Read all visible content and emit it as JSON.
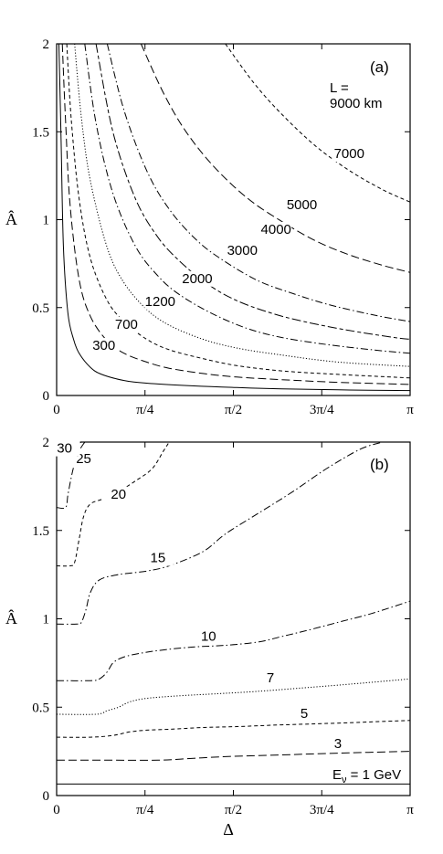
{
  "chart_data": [
    {
      "type": "line",
      "panel_label": "(a)",
      "ylabel": "Â",
      "xlabel": "",
      "xlim": [
        0,
        3.1416
      ],
      "ylim": [
        0,
        2
      ],
      "xticks": [
        {
          "v": 0,
          "t": "0"
        },
        {
          "v": 0.7854,
          "t": "π/4"
        },
        {
          "v": 1.5708,
          "t": "π/2"
        },
        {
          "v": 2.3562,
          "t": "3π/4"
        },
        {
          "v": 3.1416,
          "t": "π"
        }
      ],
      "yticks": [
        {
          "v": 0,
          "t": "0"
        },
        {
          "v": 0.5,
          "t": "0.5"
        },
        {
          "v": 1,
          "t": "1"
        },
        {
          "v": 1.5,
          "t": "1.5"
        },
        {
          "v": 2,
          "t": "2"
        }
      ],
      "series": [
        {
          "name": "300",
          "dash": "solid",
          "label_at": [
            0.42,
            0.26
          ],
          "x": [
            0.02,
            0.04,
            0.06,
            0.1,
            0.15,
            0.2,
            0.3,
            0.4,
            0.6,
            0.8,
            1.2,
            1.6,
            2.0,
            2.5,
            3.1416
          ],
          "y": [
            2,
            1.45,
            0.85,
            0.47,
            0.32,
            0.24,
            0.16,
            0.12,
            0.085,
            0.07,
            0.055,
            0.045,
            0.038,
            0.032,
            0.028
          ]
        },
        {
          "name": "700",
          "dash": "longdash",
          "label_at": [
            0.62,
            0.38
          ],
          "x": [
            0.05,
            0.08,
            0.12,
            0.2,
            0.3,
            0.45,
            0.6,
            0.8,
            1.0,
            1.3,
            1.6,
            2.0,
            2.5,
            3.1416
          ],
          "y": [
            2,
            1.55,
            1.08,
            0.66,
            0.45,
            0.31,
            0.24,
            0.19,
            0.155,
            0.125,
            0.105,
            0.09,
            0.075,
            0.063
          ]
        },
        {
          "name": "1200",
          "dash": "shortdash",
          "label_at": [
            0.92,
            0.51
          ],
          "x": [
            0.09,
            0.13,
            0.2,
            0.3,
            0.45,
            0.6,
            0.8,
            1.0,
            1.3,
            1.6,
            2.0,
            2.5,
            3.1416
          ],
          "y": [
            2,
            1.57,
            1.12,
            0.78,
            0.54,
            0.42,
            0.32,
            0.26,
            0.21,
            0.17,
            0.14,
            0.12,
            0.1
          ]
        },
        {
          "name": "2000",
          "dash": "dot",
          "label_at": [
            1.25,
            0.64
          ],
          "x": [
            0.16,
            0.22,
            0.3,
            0.45,
            0.6,
            0.8,
            1.0,
            1.3,
            1.6,
            2.0,
            2.5,
            3.1416
          ],
          "y": [
            2,
            1.58,
            1.22,
            0.84,
            0.64,
            0.49,
            0.4,
            0.32,
            0.27,
            0.23,
            0.19,
            0.165
          ]
        },
        {
          "name": "3000",
          "dash": "dashdot",
          "label_at": [
            1.65,
            0.8
          ],
          "x": [
            0.25,
            0.35,
            0.5,
            0.7,
            0.9,
            1.1,
            1.4,
            1.7,
            2.0,
            2.4,
            2.8,
            3.1416
          ],
          "y": [
            2,
            1.55,
            1.15,
            0.85,
            0.68,
            0.57,
            0.46,
            0.38,
            0.33,
            0.29,
            0.26,
            0.24
          ]
        },
        {
          "name": "4000",
          "dash": "longshort",
          "label_at": [
            1.95,
            0.92
          ],
          "x": [
            0.35,
            0.5,
            0.7,
            0.9,
            1.1,
            1.35,
            1.6,
            1.9,
            2.2,
            2.6,
            3.0,
            3.1416
          ],
          "y": [
            2,
            1.5,
            1.12,
            0.9,
            0.76,
            0.63,
            0.54,
            0.47,
            0.42,
            0.37,
            0.33,
            0.32
          ]
        },
        {
          "name": "5000",
          "dash": "dashdot",
          "label_at": [
            2.18,
            1.06
          ],
          "x": [
            0.45,
            0.6,
            0.8,
            1.0,
            1.25,
            1.5,
            1.8,
            2.1,
            2.4,
            2.8,
            3.1416
          ],
          "y": [
            2,
            1.62,
            1.28,
            1.06,
            0.88,
            0.76,
            0.65,
            0.58,
            0.52,
            0.46,
            0.42
          ]
        },
        {
          "name": "7000",
          "dash": "longdash",
          "label_at": [
            2.6,
            1.35
          ],
          "x": [
            0.75,
            0.95,
            1.15,
            1.4,
            1.7,
            2.0,
            2.3,
            2.6,
            2.9,
            3.1416
          ],
          "y": [
            2,
            1.72,
            1.5,
            1.3,
            1.12,
            0.99,
            0.88,
            0.8,
            0.74,
            0.7
          ]
        },
        {
          "name": "9000 km",
          "dash": "shortdash",
          "label_at": null,
          "x": [
            1.5,
            1.75,
            2.0,
            2.3,
            2.6,
            2.9,
            3.1416
          ],
          "y": [
            2,
            1.78,
            1.6,
            1.42,
            1.28,
            1.17,
            1.1
          ]
        }
      ],
      "annotation": {
        "line1": "L =",
        "line2": "9000 km"
      }
    },
    {
      "type": "line",
      "panel_label": "(b)",
      "ylabel": "Â",
      "xlabel": "Δ",
      "xlim": [
        0,
        3.1416
      ],
      "ylim": [
        0,
        2
      ],
      "xticks": [
        {
          "v": 0,
          "t": "0"
        },
        {
          "v": 0.7854,
          "t": "π/4"
        },
        {
          "v": 1.5708,
          "t": "π/2"
        },
        {
          "v": 2.3562,
          "t": "3π/4"
        },
        {
          "v": 3.1416,
          "t": "π"
        }
      ],
      "yticks": [
        {
          "v": 0,
          "t": "0"
        },
        {
          "v": 0.5,
          "t": "0.5"
        },
        {
          "v": 1,
          "t": "1"
        },
        {
          "v": 1.5,
          "t": "1.5"
        },
        {
          "v": 2,
          "t": "2"
        }
      ],
      "series": [
        {
          "name": "1",
          "dash": "solid",
          "color": "#8a8a8a",
          "label_at": null,
          "x": [
            0,
            3.1416
          ],
          "y": [
            0.065,
            0.065
          ]
        },
        {
          "name": "3",
          "dash": "longdash",
          "label_at": [
            2.5,
            0.27
          ],
          "x": [
            0,
            0.5,
            0.9,
            1.2,
            1.5,
            2.0,
            2.5,
            3.1416
          ],
          "y": [
            0.2,
            0.2,
            0.2,
            0.21,
            0.22,
            0.23,
            0.24,
            0.25
          ]
        },
        {
          "name": "5",
          "dash": "shortdash",
          "label_at": [
            2.2,
            0.44
          ],
          "x": [
            0,
            0.3,
            0.5,
            0.65,
            0.8,
            1.0,
            1.3,
            1.6,
            2.0,
            2.5,
            3.1416
          ],
          "y": [
            0.33,
            0.33,
            0.34,
            0.36,
            0.37,
            0.375,
            0.385,
            0.39,
            0.4,
            0.41,
            0.425
          ]
        },
        {
          "name": "7",
          "dash": "dot",
          "label_at": [
            1.9,
            0.64
          ],
          "x": [
            0,
            0.35,
            0.45,
            0.55,
            0.65,
            0.8,
            1.1,
            1.4,
            1.8,
            2.2,
            2.6,
            3.1416
          ],
          "y": [
            0.46,
            0.46,
            0.48,
            0.5,
            0.53,
            0.55,
            0.565,
            0.575,
            0.59,
            0.61,
            0.63,
            0.66
          ]
        },
        {
          "name": "10",
          "dash": "dashdot",
          "label_at": [
            1.35,
            0.875
          ],
          "x": [
            0,
            0.3,
            0.38,
            0.45,
            0.5,
            0.58,
            0.7,
            0.9,
            1.2,
            1.5,
            1.8,
            2.0,
            2.2,
            2.5,
            2.8,
            3.1416
          ],
          "y": [
            0.65,
            0.65,
            0.66,
            0.7,
            0.75,
            0.78,
            0.8,
            0.82,
            0.84,
            0.85,
            0.87,
            0.9,
            0.93,
            0.98,
            1.03,
            1.1
          ]
        },
        {
          "name": "15",
          "dash": "dashdot",
          "label_at": [
            0.9,
            1.32
          ],
          "x": [
            0,
            0.18,
            0.22,
            0.26,
            0.3,
            0.38,
            0.55,
            0.8,
            1.0,
            1.3,
            1.5,
            1.8,
            2.1,
            2.4,
            2.7,
            2.9
          ],
          "y": [
            0.97,
            0.97,
            0.98,
            1.05,
            1.15,
            1.22,
            1.25,
            1.27,
            1.3,
            1.38,
            1.48,
            1.6,
            1.72,
            1.85,
            1.96,
            2.0
          ]
        },
        {
          "name": "20",
          "dash": "shortdash",
          "label_at": [
            0.55,
            1.68
          ],
          "x": [
            0,
            0.12,
            0.16,
            0.2,
            0.24,
            0.3,
            0.42,
            0.55,
            0.7,
            0.85,
            0.95,
            1.0
          ],
          "y": [
            1.3,
            1.3,
            1.32,
            1.45,
            1.58,
            1.65,
            1.68,
            1.72,
            1.78,
            1.85,
            1.95,
            2.0
          ]
        },
        {
          "name": "25",
          "dash": "dashdot",
          "label_at": [
            0.24,
            1.88
          ],
          "x": [
            0,
            0.08,
            0.1,
            0.13,
            0.16,
            0.2,
            0.25
          ],
          "y": [
            1.63,
            1.63,
            1.7,
            1.8,
            1.88,
            1.95,
            2.0
          ]
        },
        {
          "name": "30",
          "dash": "dot",
          "label_at": [
            0.07,
            1.94
          ],
          "x": [
            0.12,
            0.14,
            0.16,
            0.19,
            0.23
          ],
          "y": [
            1.88,
            1.92,
            1.96,
            1.99,
            2.0
          ]
        }
      ],
      "annotation": {
        "line1": "E",
        "sub": "ν",
        "line2": " = 1 GeV"
      }
    }
  ]
}
